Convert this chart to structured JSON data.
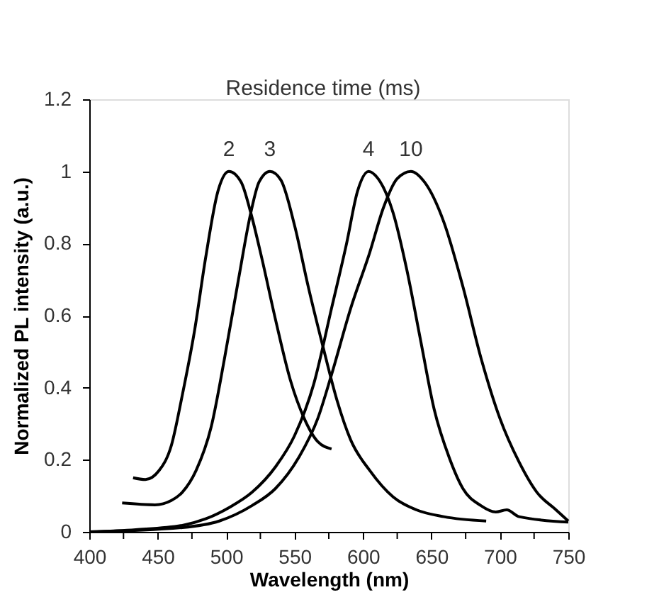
{
  "chart_data": {
    "type": "line",
    "xlabel": "Wavelength (nm)",
    "ylabel": "Normalized PL intensity (a.u.)",
    "legend_title": "Residence time (ms)",
    "xlim": [
      400,
      750
    ],
    "xticks": [
      400,
      {
        "value": 425,
        "label": null
      },
      450,
      {
        "value": 475,
        "label": null
      },
      500,
      {
        "value": 525,
        "label": null
      },
      550,
      {
        "value": 575,
        "label": null
      },
      600,
      {
        "value": 625,
        "label": null
      },
      650,
      {
        "value": 675,
        "label": null
      },
      700,
      {
        "value": 725,
        "label": null
      },
      750
    ],
    "ylim": [
      0,
      1.2
    ],
    "yticks": [
      0,
      0.2,
      0.4,
      0.6,
      0.8,
      1,
      1.2
    ],
    "grid": false,
    "legend": false,
    "marker": "none",
    "line_style": "solid",
    "series": [
      {
        "name": "2",
        "color": "#000000",
        "x": [
          432,
          441,
          451,
          460,
          468,
          477,
          485,
          494,
          502,
          511,
          518,
          526,
          536,
          547,
          557,
          567,
          577
        ],
        "values": [
          0.15,
          0.145,
          0.17,
          0.24,
          0.38,
          0.56,
          0.76,
          0.945,
          1.0,
          0.97,
          0.885,
          0.76,
          0.59,
          0.42,
          0.315,
          0.25,
          0.23
        ]
      },
      {
        "name": "3",
        "color": "#000000",
        "x": [
          424,
          448,
          460,
          468,
          478,
          489,
          499,
          509,
          518,
          524,
          532,
          540,
          550,
          560,
          571,
          581,
          591,
          605,
          622,
          639,
          659,
          690
        ],
        "values": [
          0.08,
          0.075,
          0.087,
          0.11,
          0.17,
          0.29,
          0.485,
          0.7,
          0.885,
          0.97,
          1.0,
          0.976,
          0.85,
          0.68,
          0.51,
          0.365,
          0.255,
          0.17,
          0.097,
          0.061,
          0.042,
          0.03
        ]
      },
      {
        "name": "4",
        "color": "#000000",
        "x": [
          400,
          434,
          468,
          485,
          502,
          519,
          536,
          550,
          564,
          577,
          588,
          596,
          604,
          611,
          622,
          632,
          642,
          652,
          663,
          673,
          686,
          697,
          705,
          714,
          750
        ],
        "values": [
          0,
          0.006,
          0.018,
          0.036,
          0.067,
          0.11,
          0.18,
          0.267,
          0.41,
          0.62,
          0.8,
          0.945,
          1.0,
          0.98,
          0.885,
          0.727,
          0.533,
          0.34,
          0.206,
          0.12,
          0.073,
          0.055,
          0.061,
          0.042,
          0.027
        ]
      },
      {
        "name": "10",
        "color": "#000000",
        "x": [
          400,
          468,
          495,
          519,
          536,
          553,
          567,
          577,
          591,
          605,
          615,
          625,
          635,
          645,
          659,
          673,
          686,
          700,
          714,
          727,
          741,
          750
        ],
        "values": [
          0,
          0.012,
          0.03,
          0.073,
          0.12,
          0.206,
          0.315,
          0.436,
          0.62,
          0.776,
          0.9,
          0.98,
          1.0,
          0.97,
          0.86,
          0.68,
          0.485,
          0.315,
          0.194,
          0.11,
          0.061,
          0.03
        ]
      }
    ]
  }
}
